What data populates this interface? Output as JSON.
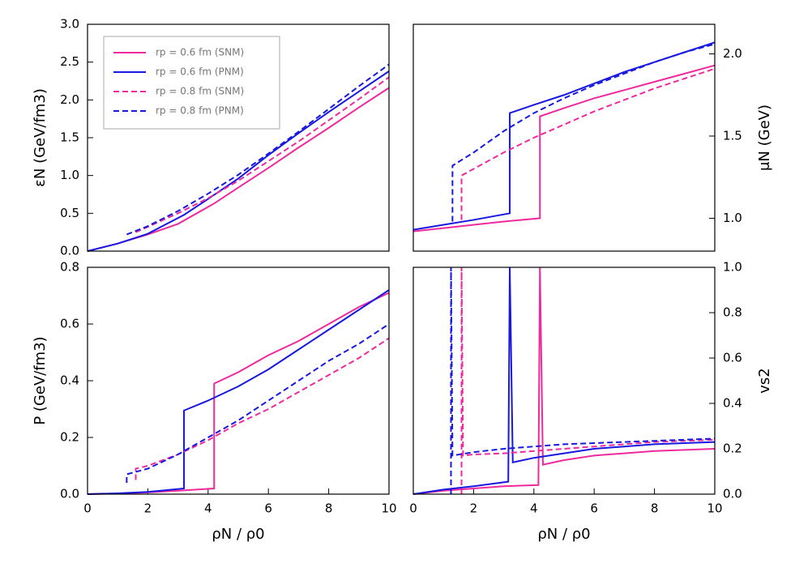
{
  "chart_data": [
    {
      "type": "line",
      "ylabel": "εN (GeV/fm3)",
      "axis_side": "left",
      "legend": "upper left",
      "xlim": [
        0,
        10
      ],
      "ylim": [
        0,
        3
      ],
      "yticks": [
        {
          "value": 0,
          "label": "0.0"
        },
        {
          "value": 0.5,
          "label": "0.5"
        },
        {
          "value": 1,
          "label": "1.0"
        },
        {
          "value": 1.5,
          "label": "1.5"
        },
        {
          "value": 2,
          "label": "2.0"
        },
        {
          "value": 2.5,
          "label": "2.5"
        },
        {
          "value": 3,
          "label": "3.0"
        }
      ],
      "series": [
        {
          "name": "rp = 0.6 fm (SNM)",
          "color": "#ee2a9c",
          "dash": false,
          "x": [
            0,
            1,
            2,
            3,
            4.2,
            5,
            6,
            7,
            8,
            9,
            10
          ],
          "values": [
            0,
            0.1,
            0.22,
            0.36,
            0.63,
            0.84,
            1.1,
            1.37,
            1.63,
            1.9,
            2.16
          ]
        },
        {
          "name": "rp = 0.6 fm (PNM)",
          "color": "#1818e0",
          "dash": false,
          "x": [
            0,
            1,
            2,
            3.2,
            4,
            5,
            6,
            7,
            8,
            9,
            10
          ],
          "values": [
            0,
            0.1,
            0.23,
            0.48,
            0.69,
            0.96,
            1.27,
            1.56,
            1.84,
            2.11,
            2.38
          ]
        },
        {
          "name": "rp = 0.8 fm (SNM)",
          "color": "#ee2a9c",
          "dash": true,
          "x": [
            1.6,
            2,
            3,
            4,
            5,
            6,
            7,
            8,
            9,
            10
          ],
          "values": [
            0.25,
            0.32,
            0.5,
            0.7,
            0.93,
            1.19,
            1.45,
            1.73,
            2.01,
            2.3
          ]
        },
        {
          "name": "rp = 0.8 fm (PNM)",
          "color": "#1818e0",
          "dash": true,
          "x": [
            1.3,
            2,
            3,
            4,
            5,
            6,
            7,
            8,
            9,
            10
          ],
          "values": [
            0.22,
            0.33,
            0.53,
            0.76,
            1.01,
            1.29,
            1.58,
            1.88,
            2.18,
            2.47
          ]
        }
      ]
    },
    {
      "type": "line",
      "ylabel": "μN (GeV)",
      "axis_side": "right",
      "xlim": [
        0,
        10
      ],
      "ylim": [
        0.8,
        2.18
      ],
      "yticks": [
        {
          "value": 1,
          "label": "1.0"
        },
        {
          "value": 1.5,
          "label": "1.5"
        },
        {
          "value": 2,
          "label": "2.0"
        }
      ],
      "series": [
        {
          "color": "#ee2a9c",
          "dash": false,
          "x": [
            0,
            1,
            2,
            3,
            4.2,
            4.2,
            5,
            6,
            7,
            8,
            9,
            10
          ],
          "values": [
            0.92,
            0.94,
            0.96,
            0.98,
            1.0,
            1.62,
            1.67,
            1.73,
            1.78,
            1.83,
            1.88,
            1.93
          ]
        },
        {
          "color": "#1818e0",
          "dash": false,
          "x": [
            0,
            1,
            2,
            3.2,
            3.2,
            4,
            5,
            6,
            7,
            8,
            9,
            10
          ],
          "values": [
            0.93,
            0.96,
            0.99,
            1.03,
            1.64,
            1.69,
            1.75,
            1.82,
            1.89,
            1.95,
            2.01,
            2.07
          ]
        },
        {
          "color": "#ee2a9c",
          "dash": true,
          "x": [
            1.6,
            1.6,
            2,
            3,
            4,
            5,
            6,
            7,
            8,
            9,
            10
          ],
          "values": [
            0.99,
            1.26,
            1.3,
            1.4,
            1.49,
            1.57,
            1.65,
            1.72,
            1.79,
            1.85,
            1.91
          ]
        },
        {
          "color": "#1818e0",
          "dash": true,
          "x": [
            1.3,
            1.3,
            2,
            3,
            4,
            5,
            6,
            7,
            8,
            9,
            10
          ],
          "values": [
            0.98,
            1.32,
            1.4,
            1.53,
            1.64,
            1.73,
            1.81,
            1.88,
            1.95,
            2.01,
            2.06
          ]
        }
      ]
    },
    {
      "type": "line",
      "ylabel": "P (GeV/fm3)",
      "xlabel": "ρN / ρ0",
      "axis_side": "left",
      "xlim": [
        0,
        10
      ],
      "ylim": [
        0,
        0.8
      ],
      "xticks": [
        0,
        2,
        4,
        6,
        8,
        10
      ],
      "yticks": [
        {
          "value": 0,
          "label": "0.0"
        },
        0.2,
        0.4,
        0.6,
        0.8
      ],
      "series": [
        {
          "color": "#ee2a9c",
          "dash": false,
          "x": [
            0,
            1,
            2,
            3,
            4.2,
            4.2,
            5,
            6,
            7,
            8,
            9,
            10
          ],
          "values": [
            0,
            0.002,
            0.006,
            0.012,
            0.02,
            0.39,
            0.43,
            0.49,
            0.54,
            0.6,
            0.66,
            0.71
          ]
        },
        {
          "color": "#1818e0",
          "dash": false,
          "x": [
            0,
            1,
            2,
            3.2,
            3.2,
            4,
            5,
            6,
            7,
            8,
            9,
            10
          ],
          "values": [
            0,
            0.003,
            0.008,
            0.02,
            0.295,
            0.33,
            0.38,
            0.44,
            0.51,
            0.58,
            0.65,
            0.72
          ]
        },
        {
          "color": "#ee2a9c",
          "dash": true,
          "x": [
            1.6,
            1.6,
            2,
            3,
            4,
            5,
            6,
            7,
            8,
            9,
            10
          ],
          "values": [
            0.05,
            0.09,
            0.1,
            0.14,
            0.19,
            0.25,
            0.3,
            0.36,
            0.42,
            0.48,
            0.55
          ]
        },
        {
          "color": "#1818e0",
          "dash": true,
          "x": [
            1.3,
            1.3,
            2,
            3,
            4,
            5,
            6,
            7,
            8,
            9,
            10
          ],
          "values": [
            0.04,
            0.07,
            0.09,
            0.14,
            0.2,
            0.26,
            0.33,
            0.4,
            0.47,
            0.53,
            0.6
          ]
        }
      ]
    },
    {
      "type": "line",
      "ylabel": "vs2",
      "xlabel": "ρN / ρ0",
      "axis_side": "right",
      "xlim": [
        0,
        10
      ],
      "ylim": [
        0,
        1
      ],
      "xticks": [
        0,
        2,
        4,
        6,
        8,
        10
      ],
      "yticks": [
        {
          "value": 0,
          "label": "0.0"
        },
        0.2,
        0.4,
        0.6,
        0.8,
        {
          "value": 1,
          "label": "1.0"
        }
      ],
      "series": [
        {
          "color": "#ee2a9c",
          "dash": false,
          "x": [
            0,
            1,
            2,
            3,
            4.15,
            4.2,
            4.3,
            5,
            6,
            7,
            8,
            9,
            10
          ],
          "values": [
            0,
            0.015,
            0.025,
            0.035,
            0.04,
            1,
            0.13,
            0.15,
            0.17,
            0.18,
            0.19,
            0.195,
            0.2
          ]
        },
        {
          "color": "#1818e0",
          "dash": false,
          "x": [
            0,
            1,
            2,
            3.15,
            3.2,
            3.3,
            4,
            5,
            6,
            7,
            8,
            9,
            10
          ],
          "values": [
            0,
            0.02,
            0.035,
            0.055,
            1,
            0.14,
            0.16,
            0.18,
            0.2,
            0.21,
            0.22,
            0.225,
            0.23
          ]
        },
        {
          "color": "#ee2a9c",
          "dash": true,
          "x": [
            1.6,
            1.6,
            1.65,
            2,
            3,
            4,
            5,
            6,
            7,
            8,
            9,
            10
          ],
          "values": [
            0,
            1,
            0.17,
            0.175,
            0.18,
            0.19,
            0.2,
            0.21,
            0.22,
            0.23,
            0.235,
            0.24
          ]
        },
        {
          "color": "#1818e0",
          "dash": true,
          "x": [
            1.25,
            1.25,
            1.3,
            2,
            3,
            4,
            5,
            6,
            7,
            8,
            9,
            10
          ],
          "values": [
            0,
            1,
            0.17,
            0.185,
            0.2,
            0.21,
            0.22,
            0.225,
            0.23,
            0.235,
            0.24,
            0.245
          ]
        }
      ]
    }
  ]
}
